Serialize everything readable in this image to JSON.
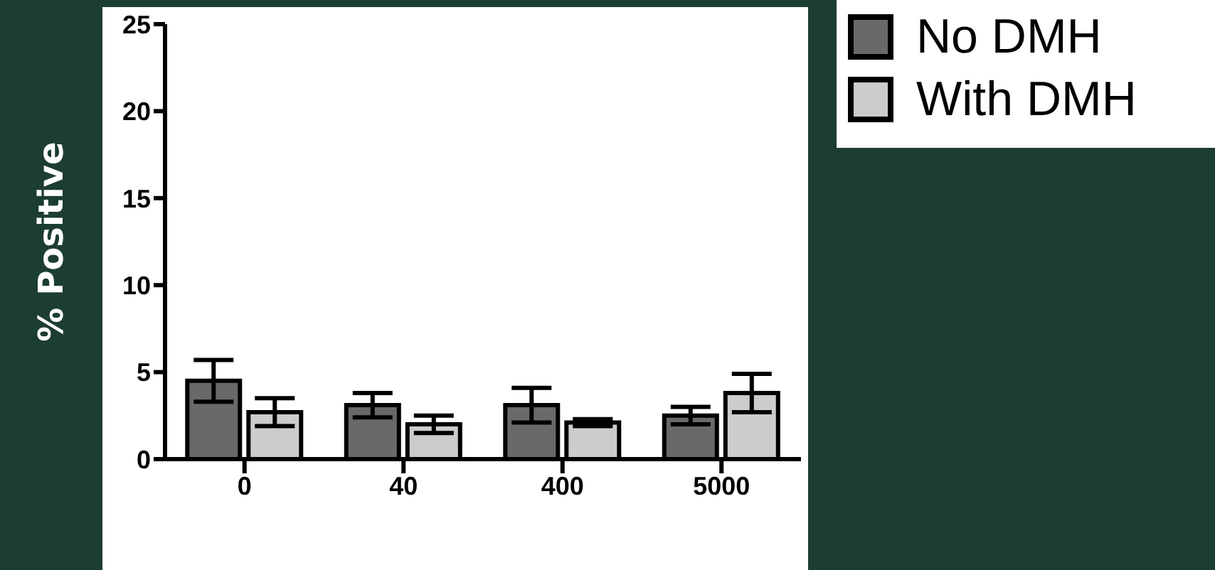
{
  "chart_data": {
    "type": "bar",
    "ylabel": "% Positive",
    "categories": [
      "0",
      "40",
      "400",
      "5000"
    ],
    "series": [
      {
        "name": "No DMH",
        "color": "#696969",
        "values": [
          4.5,
          3.1,
          3.1,
          2.5
        ],
        "errors": [
          1.2,
          0.7,
          1.0,
          0.5
        ]
      },
      {
        "name": "With DMH",
        "color": "#cccccc",
        "values": [
          2.7,
          2.0,
          2.1,
          3.8
        ],
        "errors": [
          0.8,
          0.5,
          0.2,
          1.1
        ]
      }
    ],
    "ylim": [
      0,
      25
    ],
    "yticks": [
      0,
      5,
      10,
      15,
      20,
      25
    ],
    "grid": false,
    "legend": "top right"
  }
}
